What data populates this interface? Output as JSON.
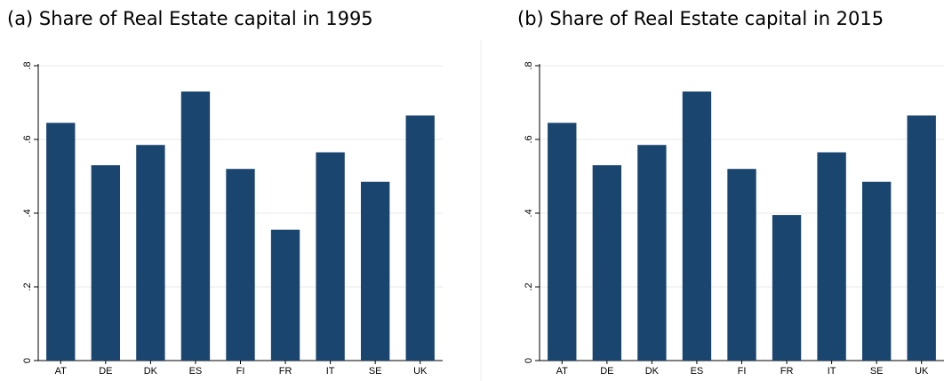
{
  "chart_data": [
    {
      "type": "bar",
      "title": "(a) Share of Real Estate capital in 1995",
      "categories": [
        "AT",
        "DE",
        "DK",
        "ES",
        "FI",
        "FR",
        "IT",
        "SE",
        "UK"
      ],
      "values": [
        0.645,
        0.53,
        0.585,
        0.73,
        0.52,
        0.355,
        0.565,
        0.485,
        0.665
      ],
      "color": "#1a456f",
      "ylim": [
        0,
        0.8
      ],
      "yticks": [
        0,
        {
          "value": 0.2,
          "label": ".2"
        },
        {
          "value": 0.4,
          "label": ".4"
        },
        {
          "value": 0.6,
          "label": ".6"
        },
        {
          "value": 0.8,
          "label": ".8"
        }
      ],
      "grid": true
    },
    {
      "type": "bar",
      "title": "(b) Share of Real Estate capital in 2015",
      "categories": [
        "AT",
        "DE",
        "DK",
        "ES",
        "FI",
        "FR",
        "IT",
        "SE",
        "UK"
      ],
      "values": [
        0.645,
        0.53,
        0.585,
        0.73,
        0.52,
        0.395,
        0.565,
        0.485,
        0.665
      ],
      "color": "#1a456f",
      "ylim": [
        0,
        0.8
      ],
      "yticks": [
        0,
        {
          "value": 0.2,
          "label": ".2"
        },
        {
          "value": 0.4,
          "label": ".4"
        },
        {
          "value": 0.6,
          "label": ".6"
        },
        {
          "value": 0.8,
          "label": ".8"
        }
      ],
      "grid": true
    }
  ]
}
